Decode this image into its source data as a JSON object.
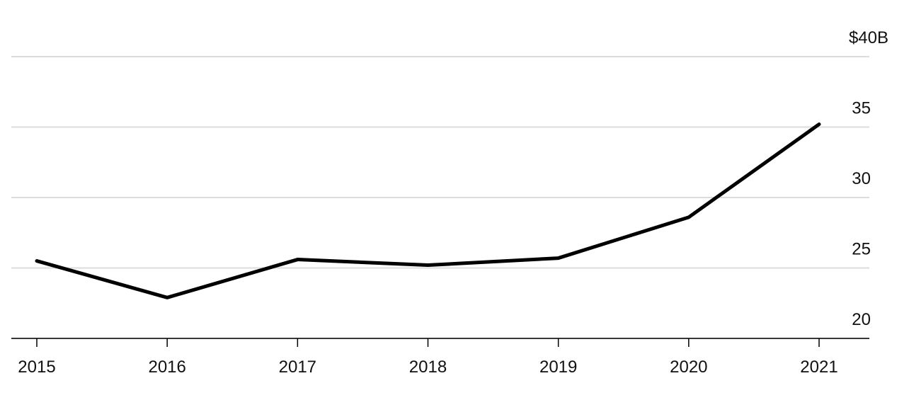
{
  "chart_data": {
    "type": "line",
    "categories": [
      "2015",
      "2016",
      "2017",
      "2018",
      "2019",
      "2020",
      "2021"
    ],
    "series": [
      {
        "name": "Value",
        "color": "#000000",
        "values": [
          25.5,
          22.9,
          25.6,
          25.2,
          25.7,
          28.6,
          35.2
        ]
      }
    ],
    "ylim": [
      20,
      40
    ],
    "yticks": [
      20,
      25,
      30,
      35,
      {
        "value": 40,
        "label": "$40B"
      }
    ],
    "grid": true
  }
}
